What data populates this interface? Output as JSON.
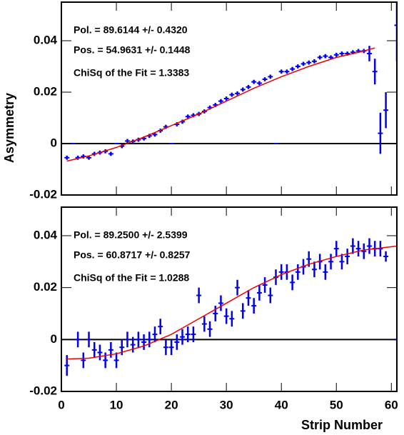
{
  "chart_data": [
    {
      "type": "scatter",
      "ylabel": "Asymmetry",
      "annotations": [
        "Pol. = 89.6144 +/- 0.4320",
        "Pos. = 54.9631 +/- 0.1448",
        "ChiSq of the Fit = 1.3383"
      ],
      "xlim": [
        0,
        61
      ],
      "xticks": [
        0,
        10,
        20,
        30,
        40,
        50,
        60
      ],
      "ylim": [
        -0.02,
        0.055
      ],
      "yticks": [
        -0.02,
        0,
        0.02,
        0.04
      ],
      "series": [
        {
          "color": "#0000ee",
          "x": [
            1,
            2,
            3,
            4,
            5,
            6,
            7,
            8,
            9,
            10,
            11,
            12,
            13,
            14,
            15,
            16,
            17,
            18,
            19,
            20,
            21,
            22,
            23,
            24,
            25,
            26,
            27,
            28,
            29,
            30,
            31,
            32,
            33,
            34,
            35,
            36,
            37,
            38,
            39,
            40,
            41,
            42,
            43,
            44,
            45,
            46,
            47,
            48,
            49,
            50,
            51,
            52,
            53,
            54,
            55,
            56,
            57,
            58,
            59,
            61
          ],
          "values": [
            -0.0055,
            0,
            -0.0055,
            -0.005,
            -0.0055,
            -0.004,
            -0.0035,
            -0.003,
            -0.004,
            0,
            -0.001,
            0.001,
            0.0008,
            0.0015,
            0.002,
            0.003,
            0.0035,
            0.005,
            0.0065,
            0,
            0.0075,
            0.0085,
            0.0105,
            0.011,
            0.0115,
            0.0125,
            0.014,
            0.015,
            0.0165,
            0.0175,
            0.019,
            0.0195,
            0.021,
            0.022,
            0.024,
            0.0235,
            0.025,
            0.026,
            0,
            0.028,
            0.028,
            0.029,
            0.03,
            0.031,
            0.0315,
            0.032,
            0.0335,
            0.034,
            0.0335,
            0.0345,
            0.035,
            0.035,
            0.0355,
            0.036,
            0.036,
            0.035,
            0.028,
            0.004,
            0.013,
            0.046
          ],
          "errors": [
            0.0008,
            0,
            0.0008,
            0.0008,
            0.0008,
            0.0008,
            0.0008,
            0.0008,
            0.0008,
            0,
            0.0008,
            0.0008,
            0.0008,
            0.0008,
            0.0008,
            0.0008,
            0.0008,
            0.0008,
            0.0008,
            0,
            0.0008,
            0.0008,
            0.0008,
            0.0008,
            0.0008,
            0.0008,
            0.0008,
            0.0008,
            0.0008,
            0.0008,
            0.0008,
            0.0008,
            0.0008,
            0.0008,
            0.0008,
            0.0008,
            0.0008,
            0.0008,
            0,
            0.0008,
            0.0008,
            0.0008,
            0.0008,
            0.0008,
            0.0008,
            0.0008,
            0.0008,
            0.0008,
            0.0008,
            0.0008,
            0.0008,
            0.0008,
            0.0008,
            0.0008,
            0.0008,
            0.003,
            0.005,
            0.008,
            0.007,
            0.014
          ]
        },
        {
          "color": "#ee0000",
          "line": true,
          "x": [
            1,
            5,
            10,
            15,
            20,
            25,
            30,
            35,
            40,
            45,
            50,
            55,
            57
          ],
          "values": [
            -0.0068,
            -0.0048,
            -0.0015,
            0.0025,
            0.007,
            0.0115,
            0.0165,
            0.0215,
            0.026,
            0.03,
            0.0335,
            0.036,
            0.0372
          ]
        }
      ]
    },
    {
      "type": "scatter",
      "xlabel": "Strip Number",
      "annotations": [
        "Pol. = 89.2500 +/- 2.5399",
        "Pos. = 60.8717 +/- 0.8257",
        "ChiSq of the Fit = 1.0288"
      ],
      "xlim": [
        0,
        61
      ],
      "xticks": [
        0,
        10,
        20,
        30,
        40,
        50,
        60
      ],
      "ylim": [
        -0.02,
        0.051
      ],
      "yticks": [
        -0.02,
        0,
        0.02,
        0.04
      ],
      "series": [
        {
          "color": "#0000ee",
          "x": [
            1,
            3,
            4,
            5,
            6,
            7,
            8,
            9,
            10,
            11,
            12,
            13,
            14,
            15,
            16,
            17,
            18,
            19,
            20,
            21,
            22,
            23,
            24,
            25,
            26,
            27,
            28,
            29,
            30,
            31,
            32,
            33,
            34,
            35,
            36,
            37,
            38,
            39,
            40,
            41,
            42,
            43,
            44,
            45,
            46,
            47,
            48,
            49,
            50,
            51,
            52,
            53,
            54,
            55,
            56,
            57,
            58,
            59,
            61
          ],
          "values": [
            -0.01,
            0,
            -0.008,
            0,
            -0.004,
            -0.005,
            -0.008,
            -0.004,
            -0.008,
            -0.003,
            0,
            -0.002,
            0,
            -0.001,
            0,
            0.002,
            0.005,
            -0.003,
            -0.003,
            -0.001,
            0.001,
            0.002,
            0.002,
            0.017,
            0.006,
            0.004,
            0.01,
            0.014,
            0.009,
            0.008,
            0.02,
            0.011,
            0.016,
            0.013,
            0.018,
            0.021,
            0.017,
            0.024,
            0.026,
            0.026,
            0.022,
            0.026,
            0.028,
            0.031,
            0.027,
            0.03,
            0.026,
            0.03,
            0.035,
            0.03,
            0.032,
            0.036,
            0.035,
            0.034,
            0.036,
            0.035,
            0.035,
            0.032,
            0
          ],
          "errors": [
            0.004,
            0.003,
            0.003,
            0.003,
            0.003,
            0.003,
            0.003,
            0.003,
            0.003,
            0.003,
            0.003,
            0.003,
            0.003,
            0.003,
            0.003,
            0.003,
            0.003,
            0.003,
            0.003,
            0.003,
            0.003,
            0.003,
            0.003,
            0.003,
            0.003,
            0.003,
            0.003,
            0.003,
            0.003,
            0.003,
            0.003,
            0.003,
            0.003,
            0.003,
            0.003,
            0.003,
            0.003,
            0.003,
            0.003,
            0.003,
            0.003,
            0.003,
            0.003,
            0.003,
            0.003,
            0.003,
            0.003,
            0.003,
            0.003,
            0.003,
            0.003,
            0.003,
            0.003,
            0.003,
            0.003,
            0.003,
            0.003,
            0.002,
            0
          ]
        },
        {
          "color": "#ee0000",
          "line": true,
          "x": [
            1,
            5,
            10,
            15,
            20,
            25,
            30,
            35,
            40,
            45,
            50,
            55,
            61
          ],
          "values": [
            -0.0075,
            -0.0072,
            -0.0055,
            -0.0025,
            0.002,
            0.008,
            0.014,
            0.02,
            0.025,
            0.029,
            0.032,
            0.0345,
            0.036
          ]
        }
      ]
    }
  ]
}
